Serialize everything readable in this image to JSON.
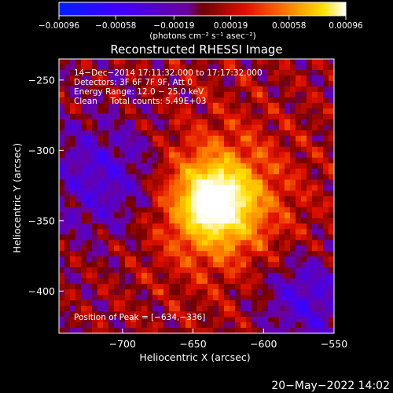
{
  "chart_data": {
    "type": "heatmap",
    "title": "Reconstructed RHESSI Image",
    "xlabel": "Heliocentric X (arcsec)",
    "ylabel": "Heliocentric Y (arcsec)",
    "xlim": [
      -745,
      -550
    ],
    "ylim": [
      -430,
      -235
    ],
    "x_ticks": [
      -700,
      -650,
      -600,
      -550
    ],
    "x_tick_labels": [
      "−700",
      "−650",
      "−600",
      "−550"
    ],
    "y_ticks": [
      -250,
      -300,
      -350,
      -400
    ],
    "y_tick_labels": [
      "−250",
      "−300",
      "−350",
      "−400"
    ],
    "colorbar": {
      "range": [
        -0.00096,
        0.00096
      ],
      "tick_values": [
        -0.00096,
        -0.00058,
        -0.00019,
        0.00019,
        0.00058,
        0.00096
      ],
      "tick_labels": [
        "−0.00096",
        "−0.00058",
        "−0.00019",
        "0.00019",
        "0.00058",
        "0.00096"
      ],
      "unit_label": "(photons cm⁻² s⁻¹ asec⁻²)"
    },
    "annotations": {
      "time_range": "14−Dec−2014 17:11:32.000 to 17:17:32.000",
      "detectors": "Detectors: 3F 6F 7F 9F, Att 0",
      "energy_range": "Energy Range: 12.0 − 25.0 keV",
      "method_counts": "Clean     Total counts: 5.49E+03",
      "peak": "Position of Peak = [−634,−336]"
    },
    "peak_position": [
      -634,
      -336
    ],
    "grid": false
  },
  "footer": {
    "timestamp": "20−May−2022 14:02"
  }
}
